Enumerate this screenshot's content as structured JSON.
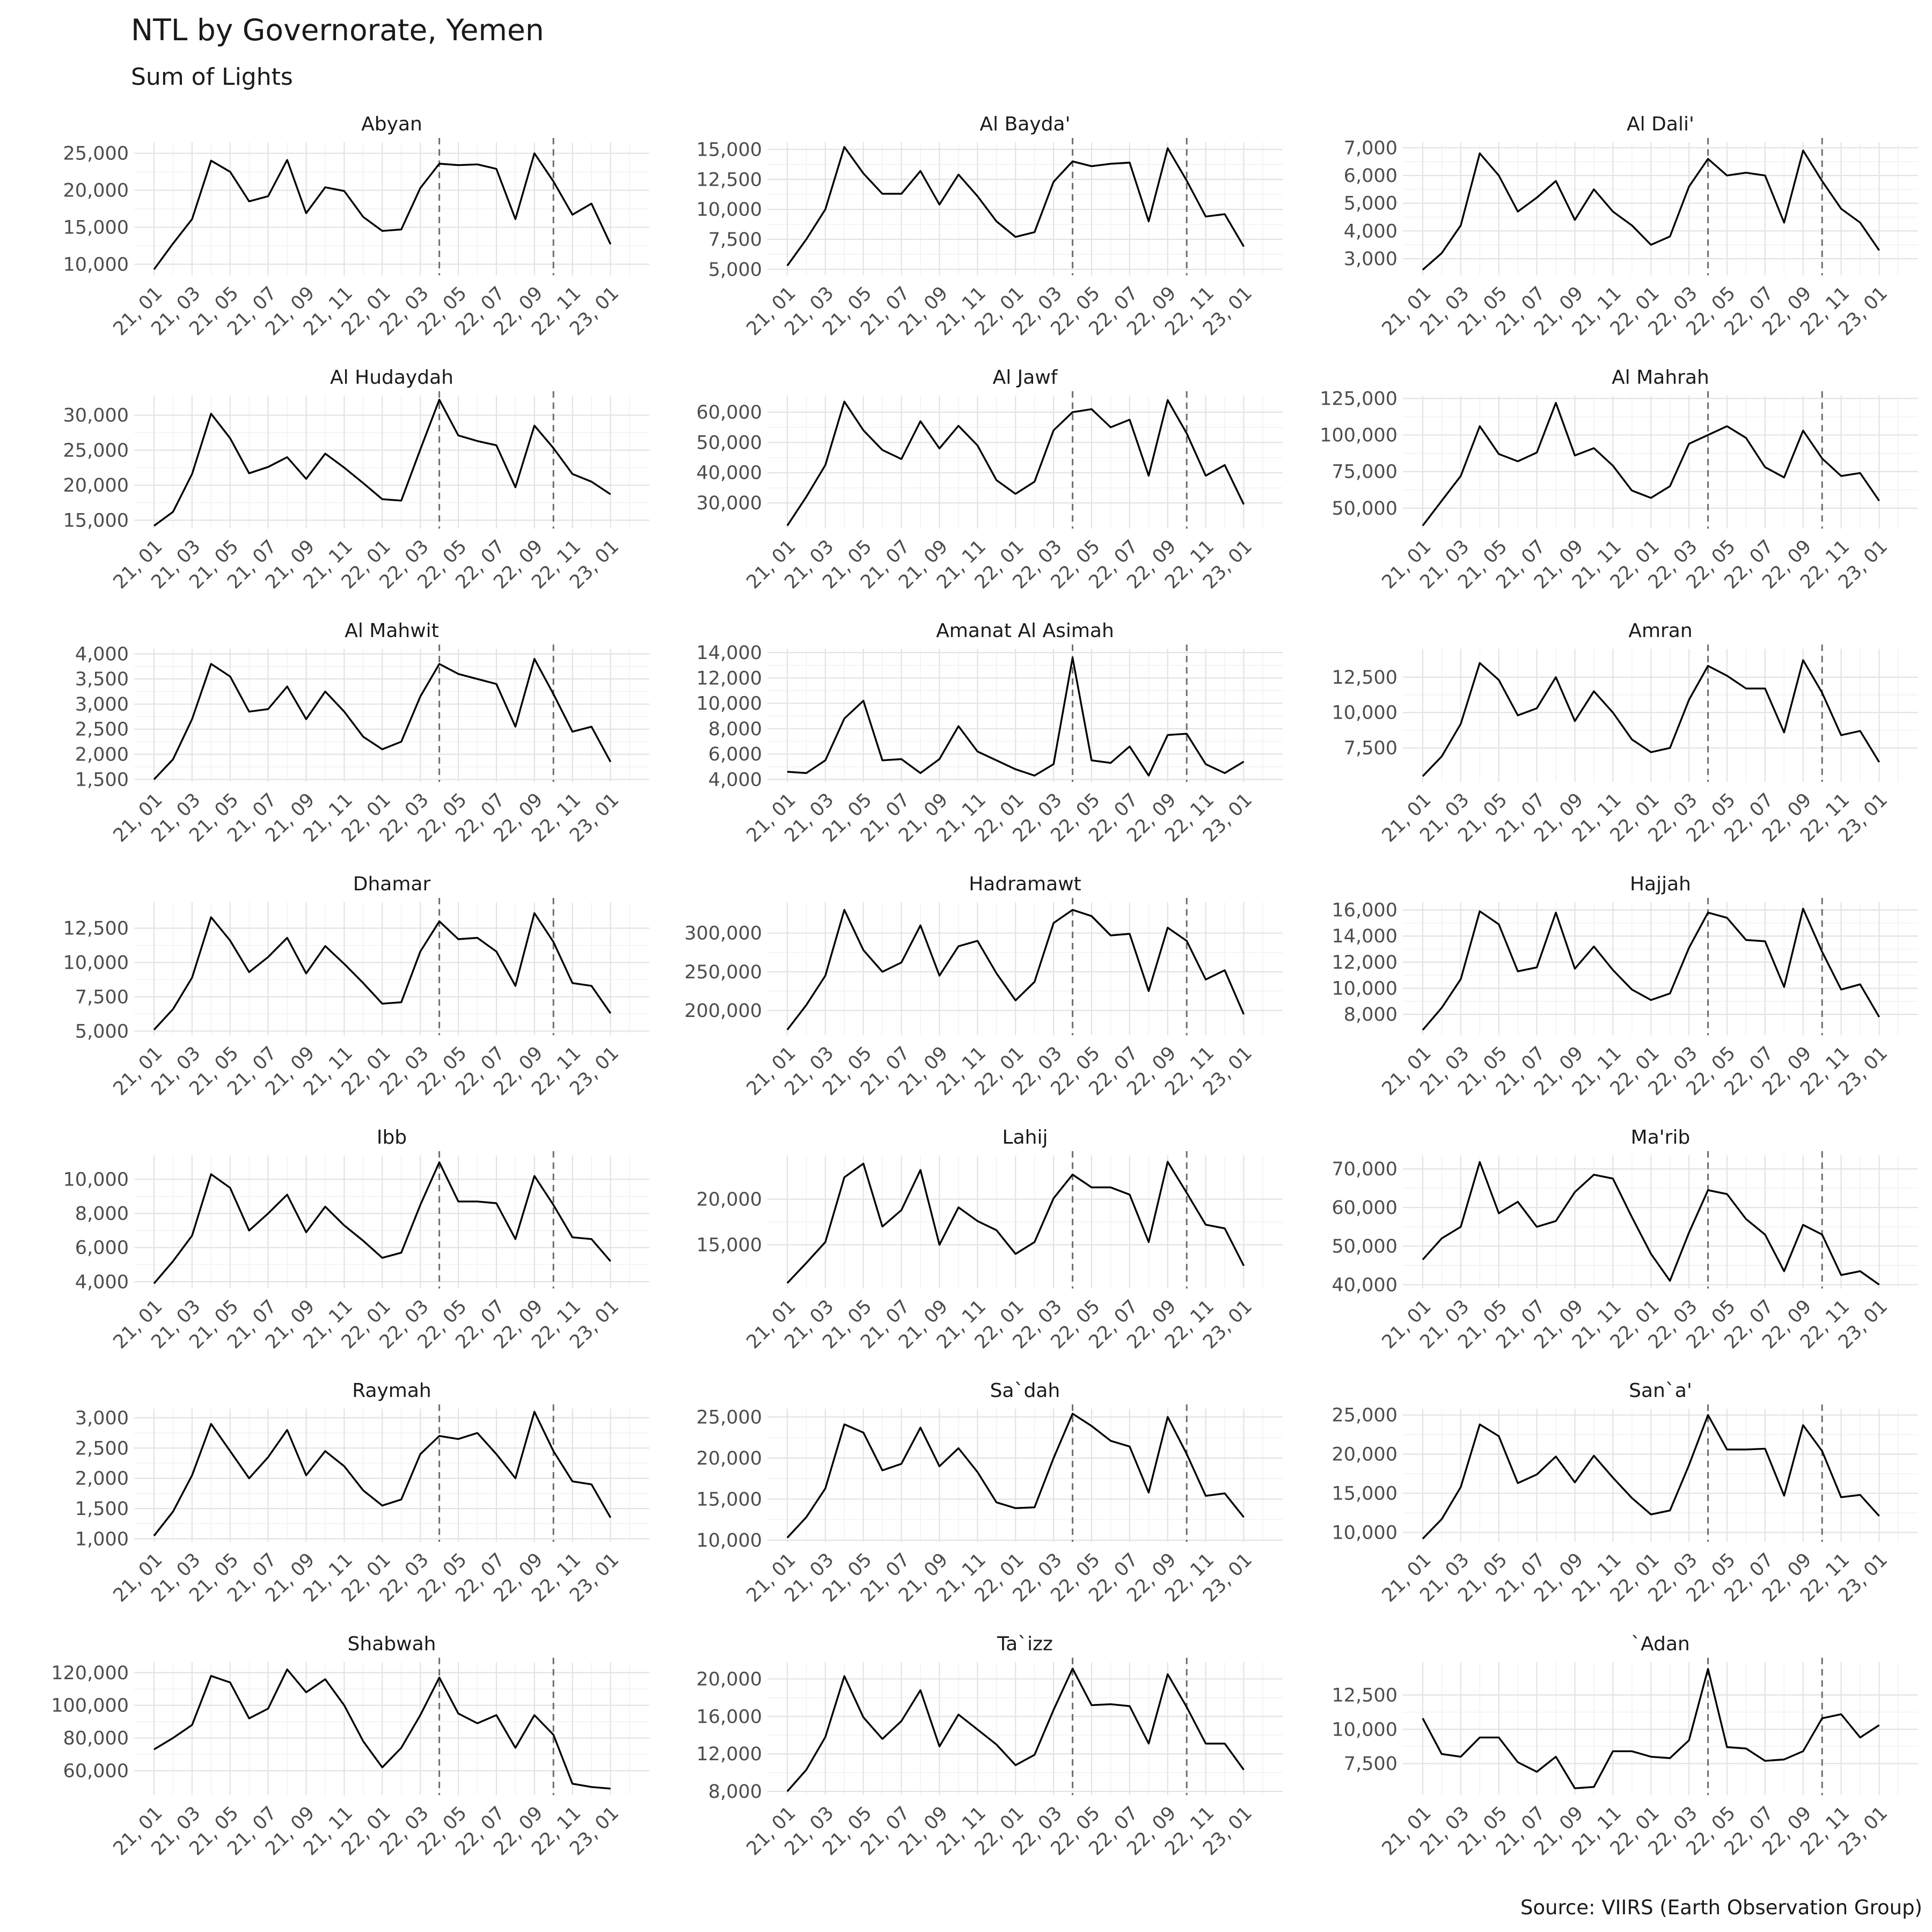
{
  "title": "NTL by Governorate, Yemen",
  "subtitle": "Sum of Lights",
  "caption": "Source: VIIRS (Earth Observation Group)",
  "chart_data": {
    "type": "line",
    "facet_by": "governorate",
    "x": [
      "21, 01",
      "21, 02",
      "21, 03",
      "21, 04",
      "21, 05",
      "21, 06",
      "21, 07",
      "21, 08",
      "21, 09",
      "21, 10",
      "21, 11",
      "21, 12",
      "22, 01",
      "22, 02",
      "22, 03",
      "22, 04",
      "22, 05",
      "22, 06",
      "22, 07",
      "22, 08",
      "22, 09",
      "22, 10",
      "22, 11",
      "22, 12",
      "23, 01",
      "23, 02"
    ],
    "x_tick_labels": [
      "21, 01",
      "21, 03",
      "21, 05",
      "21, 07",
      "21, 09",
      "21, 11",
      "22, 01",
      "22, 03",
      "22, 05",
      "22, 07",
      "22, 09",
      "22, 11",
      "23, 01"
    ],
    "event_lines_x": [
      "22, 04",
      "22, 10"
    ],
    "grid": true,
    "panels": [
      {
        "name": "Abyan",
        "yticks": [
          10000,
          15000,
          20000,
          25000
        ],
        "ylim": [
          8500,
          26500
        ],
        "values": [
          9300,
          12800,
          16100,
          24000,
          22500,
          18500,
          19200,
          24100,
          16900,
          20400,
          19900,
          16400,
          14500,
          14700,
          20300,
          23600,
          23400,
          23500,
          22900,
          16100,
          25000,
          21200,
          16700,
          18200,
          12700,
          null
        ]
      },
      {
        "name": "Al Bayda'",
        "yticks": [
          5000,
          7500,
          10000,
          12500,
          15000
        ],
        "ylim": [
          4500,
          15600
        ],
        "values": [
          5300,
          7500,
          10000,
          15200,
          13000,
          11300,
          11300,
          13200,
          10400,
          12900,
          11100,
          9000,
          7700,
          8100,
          12300,
          14000,
          13600,
          13800,
          13900,
          9000,
          15100,
          12400,
          9400,
          9600,
          6900,
          null
        ]
      },
      {
        "name": "Al Dali'",
        "yticks": [
          3000,
          4000,
          5000,
          6000,
          7000
        ],
        "ylim": [
          2400,
          7200
        ],
        "values": [
          2600,
          3200,
          4200,
          6800,
          6000,
          4700,
          5200,
          5800,
          4400,
          5500,
          4700,
          4200,
          3500,
          3800,
          5600,
          6600,
          6000,
          6100,
          6000,
          4300,
          6900,
          5800,
          4800,
          4300,
          3300,
          null
        ]
      },
      {
        "name": "Al Hudaydah",
        "yticks": [
          15000,
          20000,
          25000,
          30000
        ],
        "ylim": [
          13800,
          32800
        ],
        "values": [
          14200,
          16200,
          21600,
          30200,
          26700,
          21700,
          22600,
          24000,
          20900,
          24500,
          22500,
          20300,
          18000,
          17800,
          25100,
          32200,
          27100,
          26300,
          25700,
          19700,
          28500,
          25300,
          21600,
          20500,
          18700,
          null
        ]
      },
      {
        "name": "Al Jawf",
        "yticks": [
          30000,
          40000,
          50000,
          60000
        ],
        "ylim": [
          21500,
          65500
        ],
        "values": [
          22500,
          32000,
          42500,
          63500,
          54000,
          47500,
          44500,
          57000,
          48000,
          55500,
          49000,
          37500,
          33000,
          37000,
          54000,
          60000,
          61000,
          55000,
          57500,
          39000,
          64000,
          53000,
          39000,
          42500,
          29500,
          null
        ]
      },
      {
        "name": "Al Mahrah",
        "yticks": [
          50000,
          75000,
          100000,
          125000
        ],
        "ylim": [
          36000,
          127000
        ],
        "values": [
          38000,
          55000,
          72000,
          106000,
          87000,
          82000,
          88000,
          122000,
          86000,
          91000,
          79000,
          62000,
          57000,
          65000,
          94000,
          100000,
          106000,
          98000,
          78000,
          71000,
          103000,
          84000,
          72000,
          74000,
          55000,
          null
        ]
      },
      {
        "name": "Al Mahwit",
        "yticks": [
          1500,
          2000,
          2500,
          3000,
          3500,
          4000
        ],
        "ylim": [
          1450,
          4100
        ],
        "values": [
          1500,
          1900,
          2700,
          3800,
          3550,
          2850,
          2900,
          3350,
          2700,
          3250,
          2850,
          2350,
          2100,
          2250,
          3150,
          3800,
          3600,
          3500,
          3400,
          2550,
          3900,
          3200,
          2450,
          2550,
          1850,
          null
        ]
      },
      {
        "name": "Amanat Al Asimah",
        "yticks": [
          4000,
          6000,
          8000,
          10000,
          12000,
          14000
        ],
        "ylim": [
          3800,
          14300
        ],
        "values": [
          4600,
          4500,
          5500,
          8800,
          10200,
          5500,
          5600,
          4500,
          5600,
          8200,
          6200,
          5500,
          4800,
          4300,
          5200,
          13600,
          5500,
          5300,
          6600,
          4300,
          7500,
          7600,
          5200,
          4500,
          5400,
          null
        ]
      },
      {
        "name": "Amran",
        "yticks": [
          7500,
          10000,
          12500
        ],
        "ylim": [
          5100,
          14500
        ],
        "values": [
          5500,
          6900,
          9200,
          13500,
          12300,
          9800,
          10300,
          12500,
          9400,
          11500,
          10000,
          8100,
          7200,
          7500,
          10900,
          13300,
          12600,
          11700,
          11700,
          8600,
          13700,
          11400,
          8400,
          8700,
          6500,
          null
        ]
      },
      {
        "name": "Dhamar",
        "yticks": [
          5000,
          7500,
          10000,
          12500
        ],
        "ylim": [
          4700,
          14400
        ],
        "values": [
          5100,
          6600,
          8900,
          13300,
          11600,
          9300,
          10400,
          11800,
          9200,
          11200,
          9900,
          8500,
          7000,
          7100,
          10800,
          13000,
          11700,
          11800,
          10800,
          8300,
          13600,
          11500,
          8500,
          8300,
          6300,
          null
        ]
      },
      {
        "name": "Hadramawt",
        "yticks": [
          200000,
          250000,
          300000
        ],
        "ylim": [
          168000,
          340000
        ],
        "values": [
          175000,
          207000,
          245000,
          330000,
          278000,
          250000,
          262000,
          310000,
          245000,
          283000,
          290000,
          248000,
          213000,
          237000,
          313000,
          330000,
          322000,
          297000,
          299000,
          225000,
          307000,
          290000,
          240000,
          252000,
          195000,
          null
        ]
      },
      {
        "name": "Hajjah",
        "yticks": [
          8000,
          10000,
          12000,
          14000,
          16000
        ],
        "ylim": [
          6400,
          16600
        ],
        "values": [
          6800,
          8500,
          10700,
          15900,
          14900,
          11300,
          11600,
          15800,
          11500,
          13200,
          11400,
          9900,
          9100,
          9600,
          13100,
          15800,
          15400,
          13700,
          13600,
          10100,
          16100,
          12800,
          9900,
          10300,
          7800,
          null
        ]
      },
      {
        "name": "Ibb",
        "yticks": [
          4000,
          6000,
          8000,
          10000
        ],
        "ylim": [
          3600,
          11400
        ],
        "values": [
          3900,
          5200,
          6700,
          10300,
          9500,
          7000,
          8000,
          9100,
          6900,
          8400,
          7300,
          6400,
          5400,
          5700,
          8500,
          11000,
          8700,
          8700,
          8600,
          6500,
          10200,
          8500,
          6600,
          6500,
          5200,
          null
        ]
      },
      {
        "name": "Lahij",
        "yticks": [
          15000,
          20000
        ],
        "ylim": [
          10200,
          24800
        ],
        "values": [
          10800,
          13000,
          15300,
          22400,
          23900,
          17000,
          18800,
          23200,
          15000,
          19100,
          17600,
          16600,
          14000,
          15300,
          20100,
          22700,
          21300,
          21300,
          20500,
          15300,
          24100,
          20700,
          17200,
          16800,
          12700,
          null
        ]
      },
      {
        "name": "Ma'rib",
        "yticks": [
          40000,
          50000,
          60000,
          70000
        ],
        "ylim": [
          39000,
          73500
        ],
        "values": [
          46500,
          52000,
          55000,
          71800,
          58500,
          61500,
          55000,
          56500,
          64000,
          68500,
          67500,
          57500,
          48000,
          41000,
          53500,
          64500,
          63500,
          57000,
          53000,
          43500,
          55500,
          53000,
          42500,
          43500,
          40000,
          null
        ]
      },
      {
        "name": "Raymah",
        "yticks": [
          1000,
          1500,
          2000,
          2500,
          3000
        ],
        "ylim": [
          950,
          3150
        ],
        "values": [
          1050,
          1450,
          2050,
          2900,
          2450,
          2000,
          2350,
          2800,
          2050,
          2450,
          2200,
          1800,
          1550,
          1650,
          2400,
          2700,
          2650,
          2750,
          2400,
          2000,
          3100,
          2450,
          1950,
          1900,
          1350,
          null
        ]
      },
      {
        "name": "Sa`dah",
        "yticks": [
          10000,
          15000,
          20000,
          25000
        ],
        "ylim": [
          9800,
          26000
        ],
        "values": [
          10300,
          12800,
          16300,
          24100,
          23100,
          18500,
          19300,
          23700,
          19000,
          21200,
          18300,
          14600,
          13900,
          14000,
          20000,
          25400,
          23900,
          22100,
          21400,
          15800,
          25000,
          20500,
          15400,
          15700,
          12800,
          null
        ]
      },
      {
        "name": "San`a'",
        "yticks": [
          10000,
          15000,
          20000,
          25000
        ],
        "ylim": [
          8800,
          25800
        ],
        "values": [
          9200,
          11700,
          15800,
          23800,
          22300,
          16300,
          17400,
          19700,
          16400,
          19800,
          17000,
          14400,
          12300,
          12800,
          18600,
          25000,
          20600,
          20600,
          20700,
          14700,
          23700,
          20400,
          14500,
          14800,
          12100,
          null
        ]
      },
      {
        "name": "Shabwah",
        "yticks": [
          60000,
          80000,
          100000,
          120000
        ],
        "ylim": [
          45000,
          126500
        ],
        "values": [
          73000,
          80000,
          88000,
          118000,
          114000,
          92000,
          98000,
          122000,
          108000,
          116000,
          100000,
          78000,
          62000,
          74000,
          94000,
          117000,
          95000,
          89000,
          94000,
          74000,
          94000,
          82000,
          52000,
          50000,
          49000,
          null
        ]
      },
      {
        "name": "Ta`izz",
        "yticks": [
          8000,
          12000,
          16000,
          20000
        ],
        "ylim": [
          7600,
          21800
        ],
        "values": [
          8000,
          10300,
          13800,
          20300,
          15900,
          13600,
          15500,
          18800,
          12800,
          16200,
          14600,
          13000,
          10800,
          11900,
          16700,
          21100,
          17200,
          17300,
          17100,
          13100,
          20500,
          17000,
          13100,
          13100,
          10300,
          null
        ]
      },
      {
        "name": "`Adan",
        "yticks": [
          7500,
          10000,
          12500
        ],
        "ylim": [
          5200,
          14900
        ],
        "values": [
          10800,
          8200,
          8000,
          9400,
          9400,
          7600,
          6900,
          8000,
          5700,
          5800,
          8400,
          8400,
          8000,
          7900,
          9200,
          14400,
          8700,
          8600,
          7700,
          7800,
          8400,
          10800,
          11100,
          9400,
          10300,
          null
        ]
      }
    ]
  }
}
